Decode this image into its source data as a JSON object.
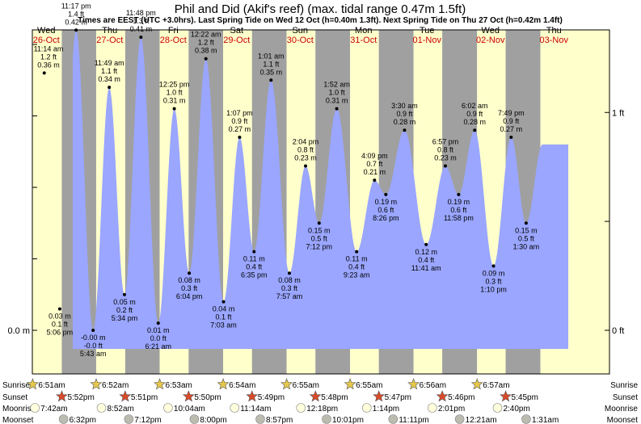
{
  "chart_data": {
    "type": "area",
    "title": "Phil and Did (Akif's reef) (max. tidal range 0.47m 1.5ft)",
    "subtitle": "Times are EEST (UTC +3.0hrs). Last Spring Tide on Wed 12 Oct (h=0.40m 1.3ft). Next Spring Tide on Thu 27 Oct (h=0.42m 1.4ft)",
    "days": [
      {
        "name": "Wed",
        "date": "26-Oct"
      },
      {
        "name": "Thu",
        "date": "27-Oct"
      },
      {
        "name": "Fri",
        "date": "28-Oct"
      },
      {
        "name": "Sat",
        "date": "29-Oct"
      },
      {
        "name": "Sun",
        "date": "30-Oct"
      },
      {
        "name": "Mon",
        "date": "31-Oct"
      },
      {
        "name": "Tue",
        "date": "01-Nov"
      },
      {
        "name": "Wed",
        "date": "02-Nov"
      },
      {
        "name": "Thu",
        "date": "03-Nov"
      }
    ],
    "y_unit_left": "m",
    "y_unit_right": "ft",
    "left_axis_labels": [
      {
        "value": 0,
        "label": "0.0 m"
      }
    ],
    "right_axis_labels": [
      {
        "value_ft": 0,
        "label": "0 ft"
      },
      {
        "value_ft": 1,
        "label": "1 ft"
      }
    ],
    "ylim_m": [
      -0.048,
      0.488
    ],
    "series": [
      {
        "values": [
          {
            "day": 0,
            "time": "5:06 pm",
            "height_m": 0.03,
            "height_ft": "0.1 ft",
            "type": "low"
          },
          {
            "day": 0,
            "time": "11:14 am",
            "height_m": 0.36,
            "height_ft": "1.2 ft",
            "type": "high"
          },
          {
            "day": 0,
            "time": "11:17 pm",
            "height_m": 0.42,
            "height_ft": "1.4 ft",
            "type": "high"
          },
          {
            "day": 1,
            "time": "5:43 am",
            "height_m": -0.0,
            "height_ft": "-0.0 ft",
            "type": "low"
          },
          {
            "day": 1,
            "time": "11:49 am",
            "height_m": 0.34,
            "height_ft": "1.1 ft",
            "type": "high"
          },
          {
            "day": 1,
            "time": "5:34 pm",
            "height_m": 0.05,
            "height_ft": "0.2 ft",
            "type": "low"
          },
          {
            "day": 1,
            "time": "11:48 pm",
            "height_m": 0.41,
            "height_ft": "1.3 ft",
            "type": "high"
          },
          {
            "day": 2,
            "time": "6:21 am",
            "height_m": 0.01,
            "height_ft": "0.0 ft",
            "type": "low"
          },
          {
            "day": 2,
            "time": "12:25 pm",
            "height_m": 0.31,
            "height_ft": "1.0 ft",
            "type": "high"
          },
          {
            "day": 2,
            "time": "6:04 pm",
            "height_m": 0.08,
            "height_ft": "0.3 ft",
            "type": "low"
          },
          {
            "day": 3,
            "time": "12:22 am",
            "height_m": 0.38,
            "height_ft": "1.2 ft",
            "type": "high"
          },
          {
            "day": 3,
            "time": "7:03 am",
            "height_m": 0.04,
            "height_ft": "0.1 ft",
            "type": "low"
          },
          {
            "day": 3,
            "time": "1:07 pm",
            "height_m": 0.27,
            "height_ft": "0.9 ft",
            "type": "high"
          },
          {
            "day": 3,
            "time": "6:35 pm",
            "height_m": 0.11,
            "height_ft": "0.4 ft",
            "type": "low"
          },
          {
            "day": 4,
            "time": "1:01 am",
            "height_m": 0.35,
            "height_ft": "1.1 ft",
            "type": "high"
          },
          {
            "day": 4,
            "time": "7:57 am",
            "height_m": 0.08,
            "height_ft": "0.3 ft",
            "type": "low"
          },
          {
            "day": 4,
            "time": "2:04 pm",
            "height_m": 0.23,
            "height_ft": "0.8 ft",
            "type": "high"
          },
          {
            "day": 4,
            "time": "7:12 pm",
            "height_m": 0.15,
            "height_ft": "0.5 ft",
            "type": "low"
          },
          {
            "day": 5,
            "time": "1:52 am",
            "height_m": 0.31,
            "height_ft": "1.0 ft",
            "type": "high"
          },
          {
            "day": 5,
            "time": "9:23 am",
            "height_m": 0.11,
            "height_ft": "0.4 ft",
            "type": "low"
          },
          {
            "day": 5,
            "time": "4:09 pm",
            "height_m": 0.21,
            "height_ft": "0.7 ft",
            "type": "high"
          },
          {
            "day": 5,
            "time": "8:26 pm",
            "height_m": 0.19,
            "height_ft": "0.6 ft",
            "type": "low"
          },
          {
            "day": 6,
            "time": "3:30 am",
            "height_m": 0.28,
            "height_ft": "0.9 ft",
            "type": "high"
          },
          {
            "day": 6,
            "time": "11:41 am",
            "height_m": 0.12,
            "height_ft": "0.4 ft",
            "type": "low"
          },
          {
            "day": 6,
            "time": "6:57 pm",
            "height_m": 0.23,
            "height_ft": "0.8 ft",
            "type": "high"
          },
          {
            "day": 6,
            "time": "11:58 pm",
            "height_m": 0.19,
            "height_ft": "0.6 ft",
            "type": "low"
          },
          {
            "day": 7,
            "time": "6:02 am",
            "height_m": 0.28,
            "height_ft": "0.9 ft",
            "type": "high"
          },
          {
            "day": 7,
            "time": "1:10 pm",
            "height_m": 0.09,
            "height_ft": "0.3 ft",
            "type": "low"
          },
          {
            "day": 7,
            "time": "7:49 pm",
            "height_m": 0.27,
            "height_ft": "0.9 ft",
            "type": "high"
          },
          {
            "day": 8,
            "time": "1:30 am",
            "height_m": 0.15,
            "height_ft": "0.5 ft",
            "type": "low"
          }
        ]
      }
    ],
    "events": {
      "labels": {
        "sunrise": "Sunrise",
        "sunset": "Sunset",
        "moonrise": "Moonrise",
        "moonset": "Moonset"
      },
      "sunrise": [
        {
          "day": 0,
          "time": "6:51am"
        },
        {
          "day": 1,
          "time": "6:52am"
        },
        {
          "day": 2,
          "time": "6:53am"
        },
        {
          "day": 3,
          "time": "6:54am"
        },
        {
          "day": 4,
          "time": "6:55am"
        },
        {
          "day": 5,
          "time": "6:55am"
        },
        {
          "day": 6,
          "time": "6:56am"
        },
        {
          "day": 7,
          "time": "6:57am"
        }
      ],
      "sunset": [
        {
          "day": 0,
          "time": "5:52pm"
        },
        {
          "day": 1,
          "time": "5:51pm"
        },
        {
          "day": 2,
          "time": "5:50pm"
        },
        {
          "day": 3,
          "time": "5:49pm"
        },
        {
          "day": 4,
          "time": "5:48pm"
        },
        {
          "day": 5,
          "time": "5:47pm"
        },
        {
          "day": 6,
          "time": "5:46pm"
        },
        {
          "day": 7,
          "time": "5:45pm"
        }
      ],
      "moonrise": [
        {
          "day": 0,
          "time": "7:42am"
        },
        {
          "day": 1,
          "time": "8:52am"
        },
        {
          "day": 2,
          "time": "10:04am"
        },
        {
          "day": 3,
          "time": "11:14am"
        },
        {
          "day": 4,
          "time": "12:18pm"
        },
        {
          "day": 5,
          "time": "1:14pm"
        },
        {
          "day": 6,
          "time": "2:01pm"
        },
        {
          "day": 7,
          "time": "2:40pm"
        }
      ],
      "moonset": [
        {
          "day": 0,
          "time": "6:32pm"
        },
        {
          "day": 1,
          "time": "7:12pm"
        },
        {
          "day": 2,
          "time": "8:00pm"
        },
        {
          "day": 3,
          "time": "8:57pm"
        },
        {
          "day": 4,
          "time": "10:01pm"
        },
        {
          "day": 5,
          "time": "11:11pm"
        },
        {
          "day": 7,
          "time": "12:21am"
        },
        {
          "day": 8,
          "time": "1:31am"
        }
      ]
    },
    "colors": {
      "tide_fill": "#9aa6ff",
      "day_band": "#ffffcc",
      "night_band": "#a0a0a0",
      "date_text": "#cc0000",
      "sunrise_star": "#e6c84a",
      "sunset_star": "#d94a2a",
      "moonrise_disc": "#ffffdd",
      "moonset_disc": "#bbbbb0"
    }
  }
}
